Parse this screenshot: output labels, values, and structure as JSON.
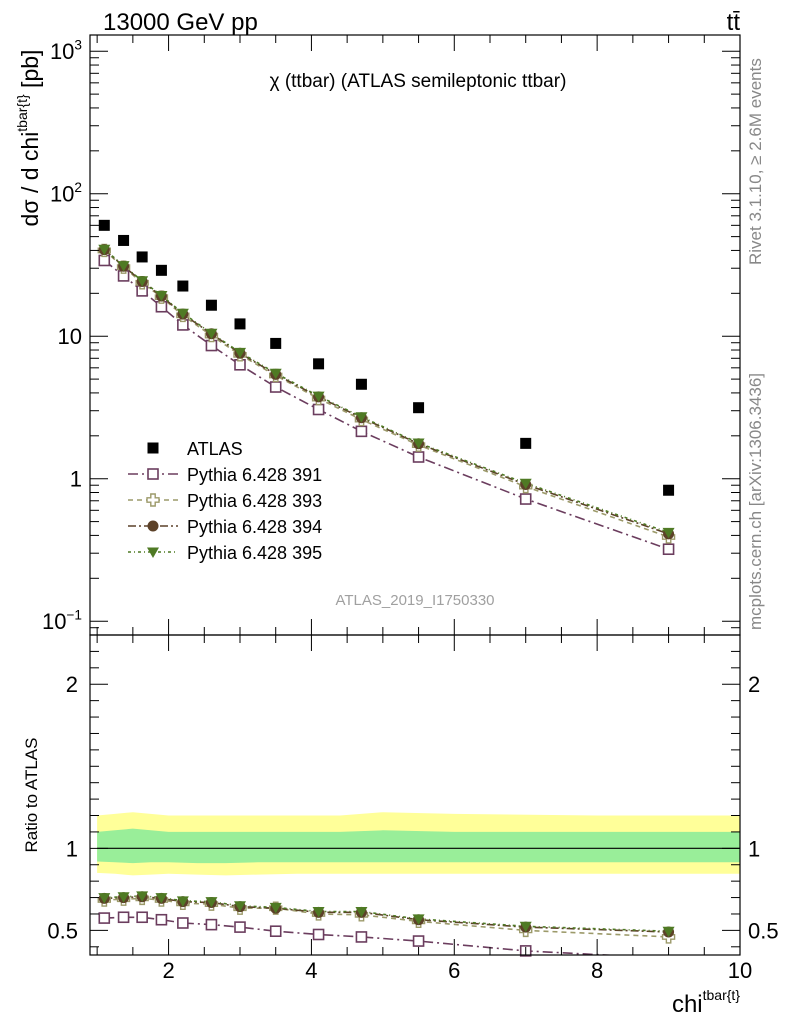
{
  "header": {
    "energy_label": "13000 GeV pp",
    "process_label": "tt̄"
  },
  "side_text": {
    "rivet": "Rivet 3.1.10, ≥ 2.6M events",
    "mcplots": "mcplots.cern.ch [arXiv:1306.3436]"
  },
  "chart_data": [
    {
      "panel": "main",
      "type": "scatter",
      "title": "χ (ttbar) (ATLAS semileptonic ttbar)",
      "watermark": "ATLAS_2019_I1750330",
      "ylabel": "dσ / d chi^{tbar{t}} [pb]",
      "yscale": "log",
      "ylim": [
        0.08,
        1300
      ],
      "xlim": [
        0.9,
        10
      ],
      "y_tick_labels": [
        "10^{−1}",
        "1",
        "10",
        "10^{2}",
        "10^{3}"
      ],
      "legend_position": "bottom-left",
      "x": [
        1.1,
        1.37,
        1.63,
        1.9,
        2.2,
        2.6,
        3.0,
        3.5,
        4.1,
        4.7,
        5.5,
        7.0,
        9.0
      ],
      "series": [
        {
          "name": "ATLAS",
          "color": "#000000",
          "marker": "square-filled",
          "values": [
            60,
            47,
            36,
            29,
            22.5,
            16.5,
            12.2,
            8.9,
            6.4,
            4.6,
            3.15,
            1.77,
            0.83
          ]
        },
        {
          "name": "Pythia 6.428 391",
          "color": "#6b3d5e",
          "marker": "square-open",
          "values": [
            34,
            26.5,
            20.8,
            16.1,
            12.0,
            8.6,
            6.3,
            4.4,
            3.06,
            2.15,
            1.42,
            0.72,
            0.32
          ]
        },
        {
          "name": "Pythia 6.428 393",
          "color": "#9c9a6a",
          "marker": "cross-open",
          "values": [
            40,
            30.5,
            23.7,
            18.8,
            14.0,
            10.1,
            7.4,
            5.3,
            3.65,
            2.6,
            1.72,
            0.88,
            0.39
          ]
        },
        {
          "name": "Pythia 6.428 394",
          "color": "#5c4128",
          "marker": "circle-filled",
          "values": [
            40.5,
            31,
            24.2,
            19.1,
            14.3,
            10.4,
            7.6,
            5.4,
            3.75,
            2.68,
            1.76,
            0.91,
            0.41
          ]
        },
        {
          "name": "Pythia 6.428 395",
          "color": "#4f7a24",
          "marker": "triangle-down-filled",
          "values": [
            40.8,
            31.3,
            24.5,
            19.3,
            14.5,
            10.5,
            7.7,
            5.5,
            3.8,
            2.72,
            1.78,
            0.93,
            0.42
          ]
        }
      ]
    },
    {
      "panel": "ratio",
      "type": "line",
      "ylabel": "Ratio to ATLAS",
      "xlabel": "chi^{tbar{t}}",
      "ylim": [
        0.35,
        2.3
      ],
      "xlim": [
        0.9,
        10
      ],
      "x_tick_labels": [
        "2",
        "4",
        "6",
        "8",
        "10"
      ],
      "y_tick_labels": [
        "0.5",
        "1",
        "2"
      ],
      "reference": 1,
      "bands": {
        "x": [
          1.0,
          1.25,
          1.5,
          1.75,
          2.0,
          2.4,
          2.8,
          3.25,
          3.8,
          4.4,
          5.0,
          6.0,
          8.0,
          10.0
        ],
        "outer_lo": [
          0.85,
          0.845,
          0.835,
          0.84,
          0.845,
          0.84,
          0.835,
          0.84,
          0.845,
          0.845,
          0.845,
          0.845,
          0.845,
          0.845
        ],
        "outer_hi": [
          1.2,
          1.21,
          1.22,
          1.21,
          1.2,
          1.2,
          1.2,
          1.2,
          1.2,
          1.2,
          1.22,
          1.21,
          1.2,
          1.2
        ],
        "inner_lo": [
          0.92,
          0.915,
          0.91,
          0.915,
          0.915,
          0.91,
          0.91,
          0.915,
          0.915,
          0.915,
          0.915,
          0.915,
          0.915,
          0.915
        ],
        "inner_hi": [
          1.1,
          1.11,
          1.12,
          1.11,
          1.1,
          1.1,
          1.1,
          1.1,
          1.1,
          1.1,
          1.11,
          1.1,
          1.1,
          1.1
        ],
        "inner_color": "#99ee99",
        "outer_color": "#ffff99"
      },
      "x": [
        1.1,
        1.37,
        1.63,
        1.9,
        2.2,
        2.6,
        3.0,
        3.5,
        4.1,
        4.7,
        5.5,
        7.0,
        9.0
      ],
      "series": [
        {
          "name": "Pythia 6.428 391",
          "color": "#6b3d5e",
          "marker": "square-open",
          "values": [
            0.575,
            0.58,
            0.58,
            0.565,
            0.545,
            0.535,
            0.52,
            0.495,
            0.475,
            0.46,
            0.435,
            0.375,
            0.33
          ]
        },
        {
          "name": "Pythia 6.428 393",
          "color": "#9c9a6a",
          "marker": "cross-open",
          "values": [
            0.685,
            0.69,
            0.695,
            0.685,
            0.665,
            0.66,
            0.635,
            0.635,
            0.6,
            0.595,
            0.555,
            0.5,
            0.46
          ]
        },
        {
          "name": "Pythia 6.428 394",
          "color": "#5c4128",
          "marker": "circle-filled",
          "values": [
            0.695,
            0.7,
            0.705,
            0.695,
            0.675,
            0.67,
            0.645,
            0.635,
            0.61,
            0.61,
            0.565,
            0.52,
            0.49
          ]
        },
        {
          "name": "Pythia 6.428 395",
          "color": "#4f7a24",
          "marker": "triangle-down-filled",
          "values": [
            0.7,
            0.705,
            0.71,
            0.7,
            0.68,
            0.675,
            0.65,
            0.64,
            0.615,
            0.615,
            0.57,
            0.525,
            0.495
          ]
        }
      ]
    }
  ]
}
